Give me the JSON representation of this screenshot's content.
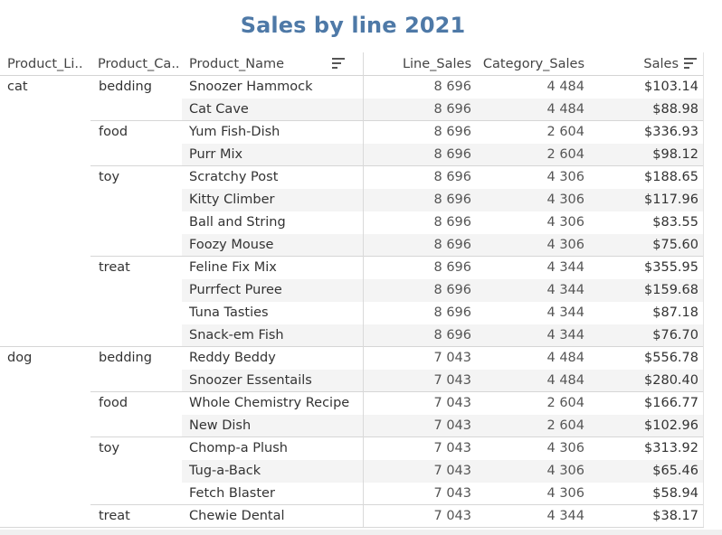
{
  "title": "Sales by line 2021",
  "columns": {
    "product_line": "Product_Li..",
    "product_category": "Product_Ca..",
    "product_name": "Product_Name",
    "line_sales": "Line_Sales",
    "category_sales": "Category_Sales",
    "sales": "Sales"
  },
  "icons": {
    "product_name_sort": "sort-descending-icon",
    "sales_sort": "sort-descending-icon"
  },
  "colors": {
    "title": "#4e79a7",
    "band": "#f4f4f4",
    "separator": "#d6d6d6"
  },
  "lines": [
    {
      "name": "cat",
      "categories": [
        {
          "name": "bedding",
          "rows": [
            {
              "product": "Snoozer Hammock",
              "line_sales": "8 696",
              "category_sales": "4 484",
              "sales": "$103.14"
            },
            {
              "product": "Cat Cave",
              "line_sales": "8 696",
              "category_sales": "4 484",
              "sales": "$88.98"
            }
          ]
        },
        {
          "name": "food",
          "rows": [
            {
              "product": "Yum Fish-Dish",
              "line_sales": "8 696",
              "category_sales": "2 604",
              "sales": "$336.93"
            },
            {
              "product": "Purr Mix",
              "line_sales": "8 696",
              "category_sales": "2 604",
              "sales": "$98.12"
            }
          ]
        },
        {
          "name": "toy",
          "rows": [
            {
              "product": "Scratchy Post",
              "line_sales": "8 696",
              "category_sales": "4 306",
              "sales": "$188.65"
            },
            {
              "product": "Kitty Climber",
              "line_sales": "8 696",
              "category_sales": "4 306",
              "sales": "$117.96"
            },
            {
              "product": "Ball and String",
              "line_sales": "8 696",
              "category_sales": "4 306",
              "sales": "$83.55"
            },
            {
              "product": "Foozy Mouse",
              "line_sales": "8 696",
              "category_sales": "4 306",
              "sales": "$75.60"
            }
          ]
        },
        {
          "name": "treat",
          "rows": [
            {
              "product": "Feline Fix Mix",
              "line_sales": "8 696",
              "category_sales": "4 344",
              "sales": "$355.95"
            },
            {
              "product": "Purrfect Puree",
              "line_sales": "8 696",
              "category_sales": "4 344",
              "sales": "$159.68"
            },
            {
              "product": "Tuna Tasties",
              "line_sales": "8 696",
              "category_sales": "4 344",
              "sales": "$87.18"
            },
            {
              "product": "Snack-em Fish",
              "line_sales": "8 696",
              "category_sales": "4 344",
              "sales": "$76.70"
            }
          ]
        }
      ]
    },
    {
      "name": "dog",
      "categories": [
        {
          "name": "bedding",
          "rows": [
            {
              "product": "Reddy Beddy",
              "line_sales": "7 043",
              "category_sales": "4 484",
              "sales": "$556.78"
            },
            {
              "product": "Snoozer Essentails",
              "line_sales": "7 043",
              "category_sales": "4 484",
              "sales": "$280.40"
            }
          ]
        },
        {
          "name": "food",
          "rows": [
            {
              "product": "Whole Chemistry Recipe",
              "line_sales": "7 043",
              "category_sales": "2 604",
              "sales": "$166.77"
            },
            {
              "product": "New Dish",
              "line_sales": "7 043",
              "category_sales": "2 604",
              "sales": "$102.96"
            }
          ]
        },
        {
          "name": "toy",
          "rows": [
            {
              "product": "Chomp-a Plush",
              "line_sales": "7 043",
              "category_sales": "4 306",
              "sales": "$313.92"
            },
            {
              "product": "Tug-a-Back",
              "line_sales": "7 043",
              "category_sales": "4 306",
              "sales": "$65.46"
            },
            {
              "product": "Fetch Blaster",
              "line_sales": "7 043",
              "category_sales": "4 306",
              "sales": "$58.94"
            }
          ]
        },
        {
          "name": "treat",
          "rows": [
            {
              "product": "Chewie Dental",
              "line_sales": "7 043",
              "category_sales": "4 344",
              "sales": "$38.17"
            }
          ]
        }
      ]
    }
  ]
}
